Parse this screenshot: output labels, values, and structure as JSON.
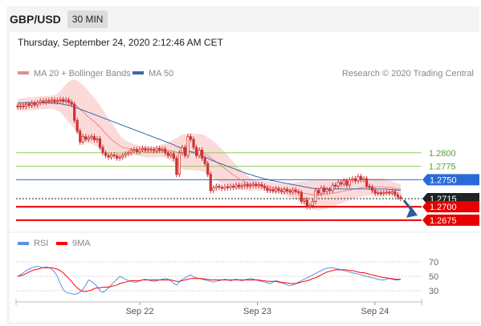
{
  "header": {
    "pair": "GBP/USD",
    "timeframe": "30 MIN"
  },
  "timestamp": "Thursday, September 24, 2020 2:12:46 AM CET",
  "legend": {
    "ma20": "MA 20 + Bollinger Bands",
    "ma50": "MA 50",
    "rsi": "RSI",
    "ma9": "9MA"
  },
  "credit": "Research © 2020 Trading Central",
  "colors": {
    "candle": "#cc3333",
    "band_fill": "#fbd3d3",
    "ma20": "#e88a8a",
    "ma50": "#3a6aa6",
    "rsi": "#5b8ee6",
    "rsi_ma": "#ff0000",
    "level_green": "#8fcf5a",
    "level_blue": "#2a6ad8",
    "level_red": "#e60000",
    "level_black": "#222222",
    "arrow": "#2d5a9a"
  },
  "chart_data": [
    {
      "type": "candlestick",
      "x_tick_labels": [
        "Sep 22",
        "Sep 23",
        "Sep 24"
      ],
      "ylim": [
        1.266,
        1.292
      ],
      "levels": [
        {
          "value": 1.28,
          "label": "1.2800",
          "style": "green",
          "tagged": false
        },
        {
          "value": 1.2775,
          "label": "1.2775",
          "style": "green",
          "tagged": false
        },
        {
          "value": 1.275,
          "label": "1.2750",
          "style": "blue",
          "tagged": true
        },
        {
          "value": 1.2715,
          "label": "1.2715",
          "style": "black",
          "tagged": true
        },
        {
          "value": 1.27,
          "label": "1.2700",
          "style": "red",
          "tagged": true
        },
        {
          "value": 1.2675,
          "label": "1.2675",
          "style": "red",
          "tagged": true
        }
      ],
      "series": [
        {
          "name": "MA 20 + Bollinger Bands",
          "kind": "ma20"
        },
        {
          "name": "MA 50",
          "kind": "ma50"
        }
      ],
      "close": [
        1.2885,
        1.2887,
        1.2886,
        1.289,
        1.2888,
        1.2892,
        1.2889,
        1.2893,
        1.2896,
        1.2894,
        1.2897,
        1.2896,
        1.2898,
        1.2895,
        1.2897,
        1.2899,
        1.2896,
        1.2898,
        1.2894,
        1.289,
        1.286,
        1.284,
        1.282,
        1.283,
        1.2825,
        1.2828,
        1.283,
        1.2824,
        1.2826,
        1.281,
        1.28,
        1.2795,
        1.2792,
        1.2796,
        1.2794,
        1.279,
        1.2792,
        1.2795,
        1.2798,
        1.28,
        1.2804,
        1.2806,
        1.2802,
        1.2806,
        1.2808,
        1.2805,
        1.2807,
        1.2806,
        1.2804,
        1.2808,
        1.2805,
        1.2807,
        1.28,
        1.2795,
        1.2798,
        1.279,
        1.276,
        1.28,
        1.281,
        1.2795,
        1.283,
        1.2825,
        1.281,
        1.2795,
        1.2805,
        1.279,
        1.278,
        1.276,
        1.273,
        1.2735,
        1.2738,
        1.2736,
        1.2734,
        1.2737,
        1.2735,
        1.2738,
        1.2736,
        1.274,
        1.2737,
        1.2739,
        1.2741,
        1.2738,
        1.274,
        1.2742,
        1.2739,
        1.2741,
        1.2738,
        1.2735,
        1.273,
        1.2732,
        1.2729,
        1.2733,
        1.273,
        1.2728,
        1.2732,
        1.2729,
        1.2727,
        1.2731,
        1.2728,
        1.2726,
        1.271,
        1.2712,
        1.27,
        1.2702,
        1.271,
        1.273,
        1.2725,
        1.2735,
        1.2728,
        1.2732,
        1.273,
        1.274,
        1.2738,
        1.2745,
        1.2742,
        1.2748,
        1.274,
        1.275,
        1.2752,
        1.2748,
        1.2756,
        1.275,
        1.2752,
        1.2738,
        1.2736,
        1.273,
        1.2725,
        1.2726,
        1.2724,
        1.2726,
        1.2727,
        1.2725,
        1.2728,
        1.2722,
        1.2718,
        1.2715
      ],
      "ma20": [
        1.289,
        1.289,
        1.289,
        1.289,
        1.2891,
        1.2891,
        1.2891,
        1.2892,
        1.2893,
        1.2893,
        1.2893,
        1.2894,
        1.2894,
        1.2894,
        1.2894,
        1.2895,
        1.2895,
        1.2895,
        1.2894,
        1.2893,
        1.289,
        1.2886,
        1.288,
        1.2876,
        1.2871,
        1.2866,
        1.2862,
        1.2858,
        1.2853,
        1.2848,
        1.2842,
        1.2836,
        1.283,
        1.2825,
        1.2821,
        1.2817,
        1.2813,
        1.281,
        1.2809,
        1.2808,
        1.2807,
        1.2806,
        1.2805,
        1.2804,
        1.2803,
        1.2802,
        1.2801,
        1.2801,
        1.2801,
        1.2802,
        1.2803,
        1.2804,
        1.2804,
        1.2804,
        1.2804,
        1.2803,
        1.2801,
        1.2801,
        1.2802,
        1.2801,
        1.2802,
        1.2802,
        1.2802,
        1.2801,
        1.2801,
        1.28,
        1.2798,
        1.2795,
        1.2791,
        1.2787,
        1.2783,
        1.2779,
        1.2775,
        1.2771,
        1.2767,
        1.2763,
        1.2759,
        1.2756,
        1.2752,
        1.2749,
        1.2746,
        1.2743,
        1.2741,
        1.274,
        1.2739,
        1.2739,
        1.2739,
        1.2738,
        1.2738,
        1.2737,
        1.2736,
        1.2735,
        1.2734,
        1.2733,
        1.2733,
        1.2732,
        1.2731,
        1.273,
        1.2729,
        1.2728,
        1.2727,
        1.2725,
        1.2724,
        1.2723,
        1.2722,
        1.2722,
        1.2722,
        1.2722,
        1.2723,
        1.2723,
        1.2724,
        1.2725,
        1.2726,
        1.2727,
        1.2728,
        1.2729,
        1.273,
        1.2731,
        1.2732,
        1.2733,
        1.2734,
        1.2735,
        1.2736,
        1.2737,
        1.2737,
        1.2737,
        1.2737,
        1.2737,
        1.2737,
        1.2737,
        1.2736,
        1.2736,
        1.2735,
        1.2734,
        1.2733,
        1.2732
      ],
      "ma20_band_width": [
        0.001,
        0.0011,
        0.0012,
        0.0012,
        0.0012,
        0.0012,
        0.0012,
        0.0012,
        0.0012,
        0.0012,
        0.0012,
        0.0012,
        0.0012,
        0.0013,
        0.0016,
        0.002,
        0.0026,
        0.0032,
        0.0038,
        0.0042,
        0.0046,
        0.0048,
        0.005,
        0.005,
        0.0049,
        0.0048,
        0.0046,
        0.0044,
        0.0042,
        0.004,
        0.0038,
        0.0036,
        0.0034,
        0.0031,
        0.0028,
        0.0024,
        0.002,
        0.0017,
        0.0014,
        0.0012,
        0.0011,
        0.001,
        0.001,
        0.001,
        0.001,
        0.001,
        0.001,
        0.001,
        0.001,
        0.001,
        0.0011,
        0.0012,
        0.0013,
        0.0015,
        0.0018,
        0.0022,
        0.0026,
        0.003,
        0.0032,
        0.0033,
        0.0034,
        0.0034,
        0.0034,
        0.0034,
        0.0034,
        0.0034,
        0.0034,
        0.0034,
        0.0034,
        0.0034,
        0.0034,
        0.0033,
        0.0032,
        0.003,
        0.0028,
        0.0026,
        0.0024,
        0.0022,
        0.002,
        0.0018,
        0.0016,
        0.0014,
        0.0012,
        0.001,
        0.0009,
        0.0009,
        0.0009,
        0.0009,
        0.0009,
        0.0009,
        0.0009,
        0.0009,
        0.001,
        0.001,
        0.0011,
        0.0012,
        0.0013,
        0.0014,
        0.0016,
        0.0018,
        0.002,
        0.0022,
        0.0024,
        0.0026,
        0.0027,
        0.0028,
        0.0028,
        0.0028,
        0.0028,
        0.0027,
        0.0026,
        0.0025,
        0.0024,
        0.0023,
        0.0022,
        0.0021,
        0.002,
        0.0019,
        0.0018,
        0.0017,
        0.0016,
        0.0016,
        0.0016,
        0.0016,
        0.0016,
        0.0016,
        0.0016,
        0.0016,
        0.0016,
        0.0015,
        0.0014,
        0.0013,
        0.0012,
        0.0011,
        0.001,
        0.001
      ],
      "ma50": [
        1.2893,
        1.2893,
        1.2893,
        1.2893,
        1.2893,
        1.2893,
        1.2893,
        1.2893,
        1.2893,
        1.2893,
        1.2893,
        1.2892,
        1.2892,
        1.2892,
        1.2891,
        1.2891,
        1.289,
        1.2889,
        1.2888,
        1.2887,
        1.2885,
        1.2883,
        1.2881,
        1.2879,
        1.2877,
        1.2875,
        1.2873,
        1.2871,
        1.2869,
        1.2867,
        1.2865,
        1.2863,
        1.2861,
        1.2859,
        1.2857,
        1.2855,
        1.2853,
        1.2851,
        1.2849,
        1.2847,
        1.2845,
        1.2843,
        1.2841,
        1.2839,
        1.2837,
        1.2835,
        1.2833,
        1.2831,
        1.2829,
        1.2827,
        1.2825,
        1.2823,
        1.2821,
        1.2819,
        1.2817,
        1.2815,
        1.2812,
        1.281,
        1.2808,
        1.2806,
        1.2804,
        1.2802,
        1.28,
        1.2798,
        1.2796,
        1.2794,
        1.2792,
        1.279,
        1.2787,
        1.2785,
        1.2783,
        1.2781,
        1.2779,
        1.2777,
        1.2775,
        1.2773,
        1.2771,
        1.2769,
        1.2767,
        1.2765,
        1.2763,
        1.2761,
        1.276,
        1.2758,
        1.2756,
        1.2755,
        1.2753,
        1.2752,
        1.2751,
        1.2749,
        1.2748,
        1.2747,
        1.2746,
        1.2745,
        1.2744,
        1.2743,
        1.2742,
        1.2741,
        1.274,
        1.2739,
        1.2738,
        1.2737,
        1.2736,
        1.2735,
        1.2734,
        1.2734,
        1.2733,
        1.2733,
        1.2733,
        1.2733,
        1.2733,
        1.2733,
        1.2733,
        1.2733,
        1.2733,
        1.2733,
        1.2733,
        1.2733,
        1.2733,
        1.2733,
        1.2733,
        1.2733,
        1.2733,
        1.2733,
        1.2733,
        1.2733,
        1.2733,
        1.2733,
        1.2733,
        1.2733,
        1.2733,
        1.2732,
        1.2732,
        1.2731,
        1.2731,
        1.273
      ]
    },
    {
      "type": "line",
      "ylim": [
        20,
        80
      ],
      "y_tick_labels": [
        "70",
        "50",
        "30"
      ],
      "y_tick_values": [
        70,
        50,
        30
      ],
      "series": [
        {
          "name": "RSI",
          "kind": "rsi",
          "values": [
            50,
            52,
            55,
            58,
            60,
            62,
            63,
            64,
            63,
            62,
            63,
            62,
            60,
            56,
            50,
            40,
            32,
            28,
            27,
            26,
            25,
            26,
            28,
            32,
            38,
            45,
            43,
            40,
            36,
            30,
            28,
            30,
            34,
            38,
            42,
            46,
            50,
            48,
            46,
            44,
            43,
            42,
            42,
            44,
            45,
            46,
            45,
            44,
            43,
            44,
            45,
            46,
            47,
            46,
            44,
            40,
            38,
            42,
            46,
            48,
            50,
            52,
            49,
            48,
            47,
            46,
            45,
            44,
            43,
            42,
            43,
            44,
            45,
            46,
            45,
            44,
            45,
            46,
            45,
            44,
            45,
            46,
            47,
            46,
            45,
            44,
            43,
            42,
            41,
            40,
            42,
            44,
            43,
            41,
            40,
            38,
            37,
            38,
            40,
            42,
            44,
            46,
            48,
            50,
            52,
            54,
            56,
            58,
            60,
            61,
            62,
            62,
            61,
            60,
            59,
            58,
            57,
            56,
            55,
            54,
            53,
            52,
            51,
            50,
            49,
            48,
            47,
            46,
            45,
            45,
            46,
            47,
            46,
            45,
            45,
            46
          ]
        },
        {
          "name": "9MA",
          "kind": "rsi_ma",
          "values": [
            50,
            51,
            52,
            54,
            56,
            58,
            59,
            60,
            61,
            62,
            62,
            62,
            62,
            61,
            60,
            58,
            55,
            51,
            47,
            43,
            38,
            34,
            31,
            29,
            29,
            30,
            31,
            33,
            34,
            34,
            35,
            35,
            35,
            36,
            37,
            38,
            40,
            41,
            42,
            43,
            44,
            44,
            44,
            44,
            45,
            45,
            45,
            45,
            45,
            45,
            45,
            45,
            45,
            45,
            45,
            44,
            43,
            43,
            44,
            45,
            46,
            47,
            47,
            47,
            47,
            47,
            46,
            46,
            45,
            45,
            45,
            45,
            45,
            45,
            45,
            45,
            45,
            45,
            45,
            45,
            45,
            45,
            45,
            45,
            45,
            45,
            44,
            44,
            43,
            43,
            43,
            43,
            42,
            42,
            41,
            41,
            40,
            40,
            40,
            41,
            42,
            43,
            44,
            45,
            47,
            48,
            50,
            52,
            54,
            56,
            57,
            58,
            59,
            59,
            59,
            59,
            59,
            58,
            58,
            57,
            56,
            55,
            55,
            54,
            53,
            52,
            51,
            50,
            49,
            48,
            48,
            47,
            47,
            46,
            46,
            46
          ]
        }
      ]
    }
  ]
}
